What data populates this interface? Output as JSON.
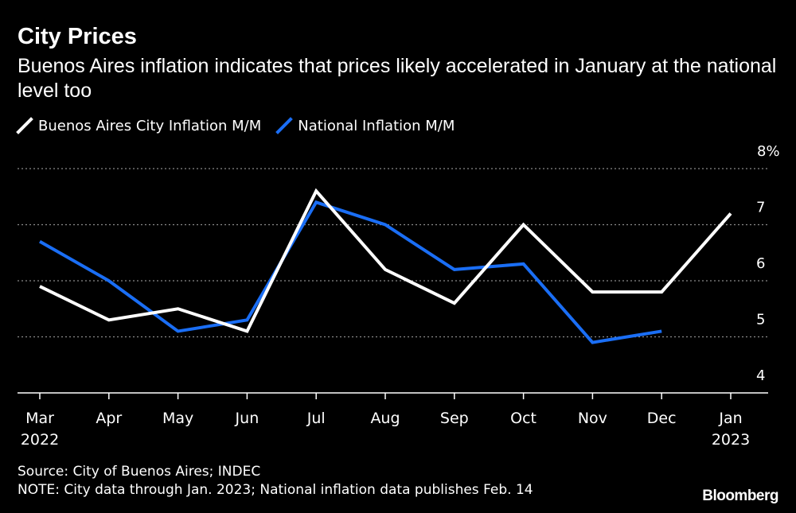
{
  "header": {
    "title": "City Prices",
    "subtitle": "Buenos Aires inflation indicates that prices likely accelerated in January at the national level too"
  },
  "footer": {
    "source": "Source: City of Buenos Aires; INDEC",
    "note": "NOTE: City data through Jan. 2023; National inflation data publishes Feb. 14",
    "brand": "Bloomberg"
  },
  "colors": {
    "background": "#000000",
    "city": "#ffffff",
    "national": "#1a6ef5",
    "grid": "#8a8a8a",
    "axis": "#ffffff"
  },
  "chart_data": {
    "type": "line",
    "title": "City Prices",
    "subtitle": "Buenos Aires inflation indicates that prices likely accelerated in January at the national level too",
    "categories": [
      "Mar",
      "Apr",
      "May",
      "Jun",
      "Jul",
      "Aug",
      "Sep",
      "Oct",
      "Nov",
      "Dec",
      "Jan"
    ],
    "category_sublabels": [
      "2022",
      "",
      "",
      "",
      "",
      "",
      "",
      "",
      "",
      "",
      "2023"
    ],
    "ylim": [
      4,
      8
    ],
    "yticks": [
      4,
      5,
      6,
      7,
      8
    ],
    "ytick_labels": [
      "4",
      "5",
      "6",
      "7",
      "8%"
    ],
    "legend_position": "top-left",
    "grid": true,
    "series": [
      {
        "name": "Buenos Aires City Inflation M/M",
        "key": "city",
        "values": [
          5.9,
          5.3,
          5.5,
          5.1,
          7.6,
          6.2,
          5.6,
          7.0,
          5.8,
          5.8,
          7.2
        ]
      },
      {
        "name": "National Inflation M/M",
        "key": "national",
        "values": [
          6.7,
          6.0,
          5.1,
          5.3,
          7.4,
          7.0,
          6.2,
          6.3,
          4.9,
          5.1,
          null
        ]
      }
    ]
  }
}
